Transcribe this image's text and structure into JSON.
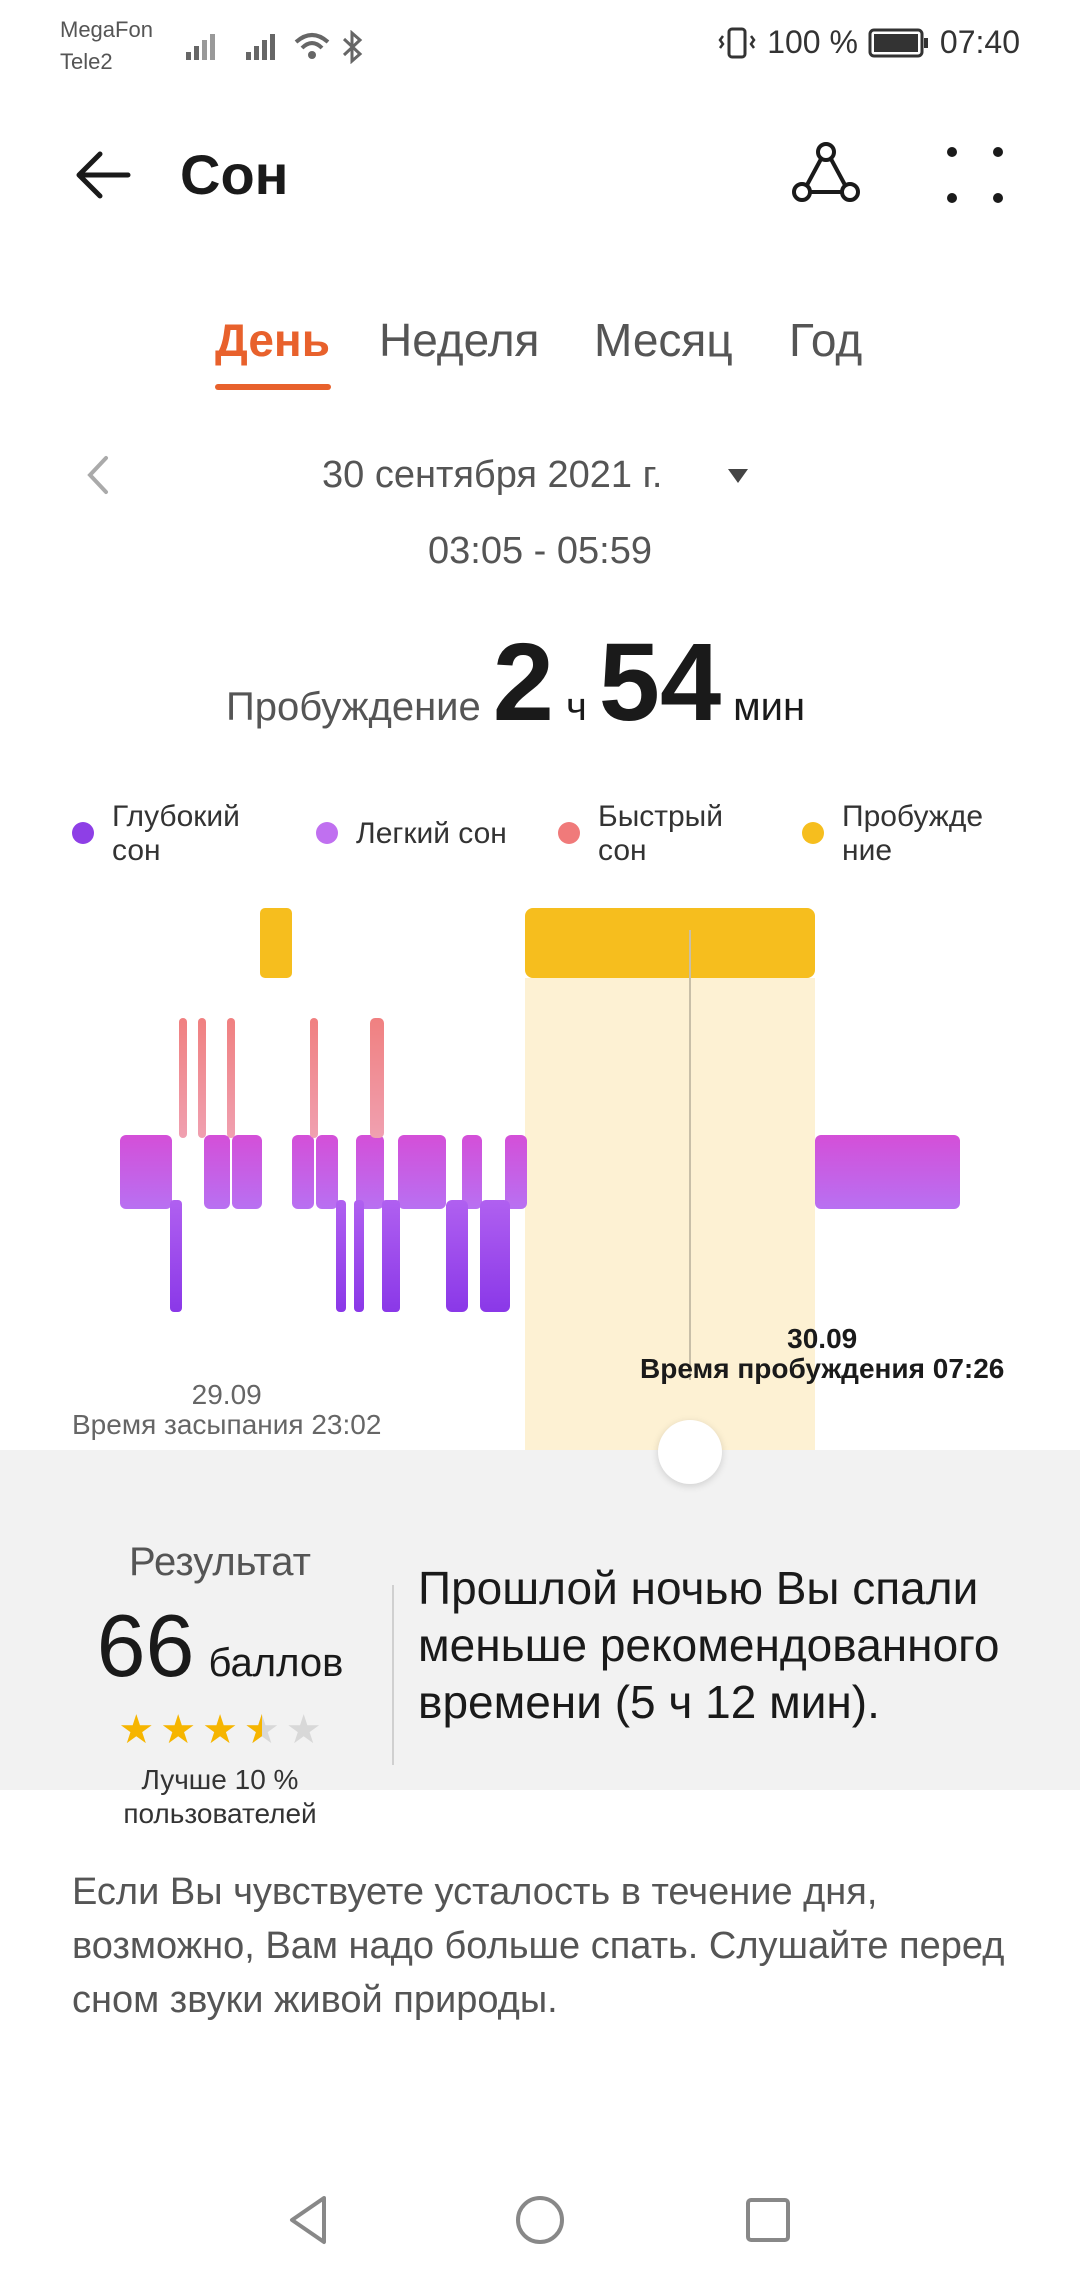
{
  "status_bar": {
    "carrier1": "MegaFon",
    "carrier2": "Tele2",
    "battery": "100 %",
    "time": "07:40"
  },
  "header": {
    "title": "Сон",
    "back_icon": "arrow-left-icon",
    "share_icon": "share-icon",
    "more_icon": "more-icon"
  },
  "tabs": [
    {
      "label": "День",
      "active": true
    },
    {
      "label": "Неделя",
      "active": false
    },
    {
      "label": "Месяц",
      "active": false
    },
    {
      "label": "Год",
      "active": false
    }
  ],
  "date": {
    "label": "30 сентября 2021 г.",
    "range": "03:05 - 05:59"
  },
  "summary": {
    "label": "Пробуждение",
    "hours": "2",
    "hours_unit": "ч",
    "minutes": "54",
    "minutes_unit": "мин"
  },
  "legend": [
    {
      "label": "Глубокий\nсон",
      "color": "#8e3fe6"
    },
    {
      "label": "Легкий сон",
      "color": "#c070f0"
    },
    {
      "label": "Быстрый\nсон",
      "color": "#f07a7a"
    },
    {
      "label": "Пробужде\nние",
      "color": "#f6be1e"
    }
  ],
  "chart_labels": {
    "sleep_date": "29.09",
    "sleep_time": "Время засыпания 23:02",
    "wake_date": "30.09",
    "wake_time": "Время пробуждения 07:26"
  },
  "result": {
    "title": "Результат",
    "score": "66",
    "score_unit": "баллов",
    "rating": 3.5,
    "rating_max": 5,
    "better_line1": "Лучше 10 %",
    "better_line2": "пользователей",
    "message": "Прошлой ночью Вы спали меньше рекомендованного времени (5 ч 12 мин)."
  },
  "advice": "Если Вы чувствуете усталость в течение дня, возможно, Вам надо больше спать. Слушайте перед сном звуки живой природы.",
  "nav": {
    "back": "nav-back-icon",
    "home": "nav-home-icon",
    "recent": "nav-recent-icon"
  }
}
